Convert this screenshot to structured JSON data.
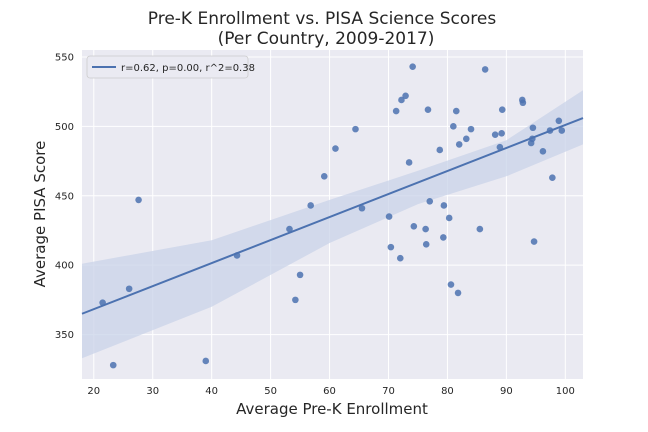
{
  "chart_data": {
    "type": "scatter",
    "title": "Pre-K Enrollment vs. PISA Science Scores",
    "subtitle": "(Per Country, 2009-2017)",
    "xlabel": "Average Pre-K Enrollment",
    "ylabel": "Average PISA Score",
    "xlim": [
      18,
      103
    ],
    "ylim": [
      318,
      555
    ],
    "xticks": [
      20,
      30,
      40,
      50,
      60,
      70,
      80,
      90,
      100
    ],
    "yticks": [
      350,
      400,
      450,
      500,
      550
    ],
    "grid": true,
    "legend_position": "top-left",
    "legend_label": "r=0.62, p=0.00, r^2=0.38",
    "colors": {
      "background": "#eaeaf2",
      "grid": "#ffffff",
      "points": "#4c72b0",
      "line": "#4c72b0",
      "band": "#c9d3e8"
    },
    "regression": {
      "x": [
        18,
        103
      ],
      "y": [
        365,
        506
      ]
    },
    "confidence_band": {
      "x": [
        18,
        40,
        60,
        75,
        90,
        103
      ],
      "upper": [
        401,
        418,
        447,
        468,
        490,
        526
      ],
      "lower": [
        333,
        370,
        416,
        444,
        464,
        487
      ]
    },
    "points": [
      {
        "x": 21.5,
        "y": 373
      },
      {
        "x": 23.3,
        "y": 328
      },
      {
        "x": 26.0,
        "y": 383
      },
      {
        "x": 27.6,
        "y": 447
      },
      {
        "x": 39.0,
        "y": 331
      },
      {
        "x": 44.3,
        "y": 407
      },
      {
        "x": 53.2,
        "y": 426
      },
      {
        "x": 54.2,
        "y": 375
      },
      {
        "x": 55.0,
        "y": 393
      },
      {
        "x": 56.8,
        "y": 443
      },
      {
        "x": 59.1,
        "y": 464
      },
      {
        "x": 61.0,
        "y": 484
      },
      {
        "x": 64.4,
        "y": 498
      },
      {
        "x": 65.5,
        "y": 441
      },
      {
        "x": 70.1,
        "y": 435
      },
      {
        "x": 70.4,
        "y": 413
      },
      {
        "x": 71.3,
        "y": 511
      },
      {
        "x": 72.0,
        "y": 405
      },
      {
        "x": 72.2,
        "y": 519
      },
      {
        "x": 72.9,
        "y": 522
      },
      {
        "x": 73.5,
        "y": 474
      },
      {
        "x": 74.1,
        "y": 543
      },
      {
        "x": 74.3,
        "y": 428
      },
      {
        "x": 76.3,
        "y": 426
      },
      {
        "x": 76.4,
        "y": 415
      },
      {
        "x": 76.7,
        "y": 512
      },
      {
        "x": 77.0,
        "y": 446
      },
      {
        "x": 78.7,
        "y": 483
      },
      {
        "x": 79.3,
        "y": 420
      },
      {
        "x": 79.4,
        "y": 443
      },
      {
        "x": 80.3,
        "y": 434
      },
      {
        "x": 80.6,
        "y": 386
      },
      {
        "x": 81.0,
        "y": 500
      },
      {
        "x": 81.5,
        "y": 511
      },
      {
        "x": 81.8,
        "y": 380
      },
      {
        "x": 82.0,
        "y": 487
      },
      {
        "x": 83.2,
        "y": 491
      },
      {
        "x": 84.0,
        "y": 498
      },
      {
        "x": 85.5,
        "y": 426
      },
      {
        "x": 86.4,
        "y": 541
      },
      {
        "x": 88.1,
        "y": 494
      },
      {
        "x": 88.9,
        "y": 485
      },
      {
        "x": 89.2,
        "y": 495
      },
      {
        "x": 89.3,
        "y": 512
      },
      {
        "x": 92.7,
        "y": 519
      },
      {
        "x": 92.8,
        "y": 517
      },
      {
        "x": 94.2,
        "y": 488
      },
      {
        "x": 94.4,
        "y": 491
      },
      {
        "x": 94.5,
        "y": 499
      },
      {
        "x": 94.7,
        "y": 417
      },
      {
        "x": 96.2,
        "y": 482
      },
      {
        "x": 97.4,
        "y": 497
      },
      {
        "x": 97.8,
        "y": 463
      },
      {
        "x": 98.9,
        "y": 504
      },
      {
        "x": 99.4,
        "y": 497
      }
    ]
  }
}
